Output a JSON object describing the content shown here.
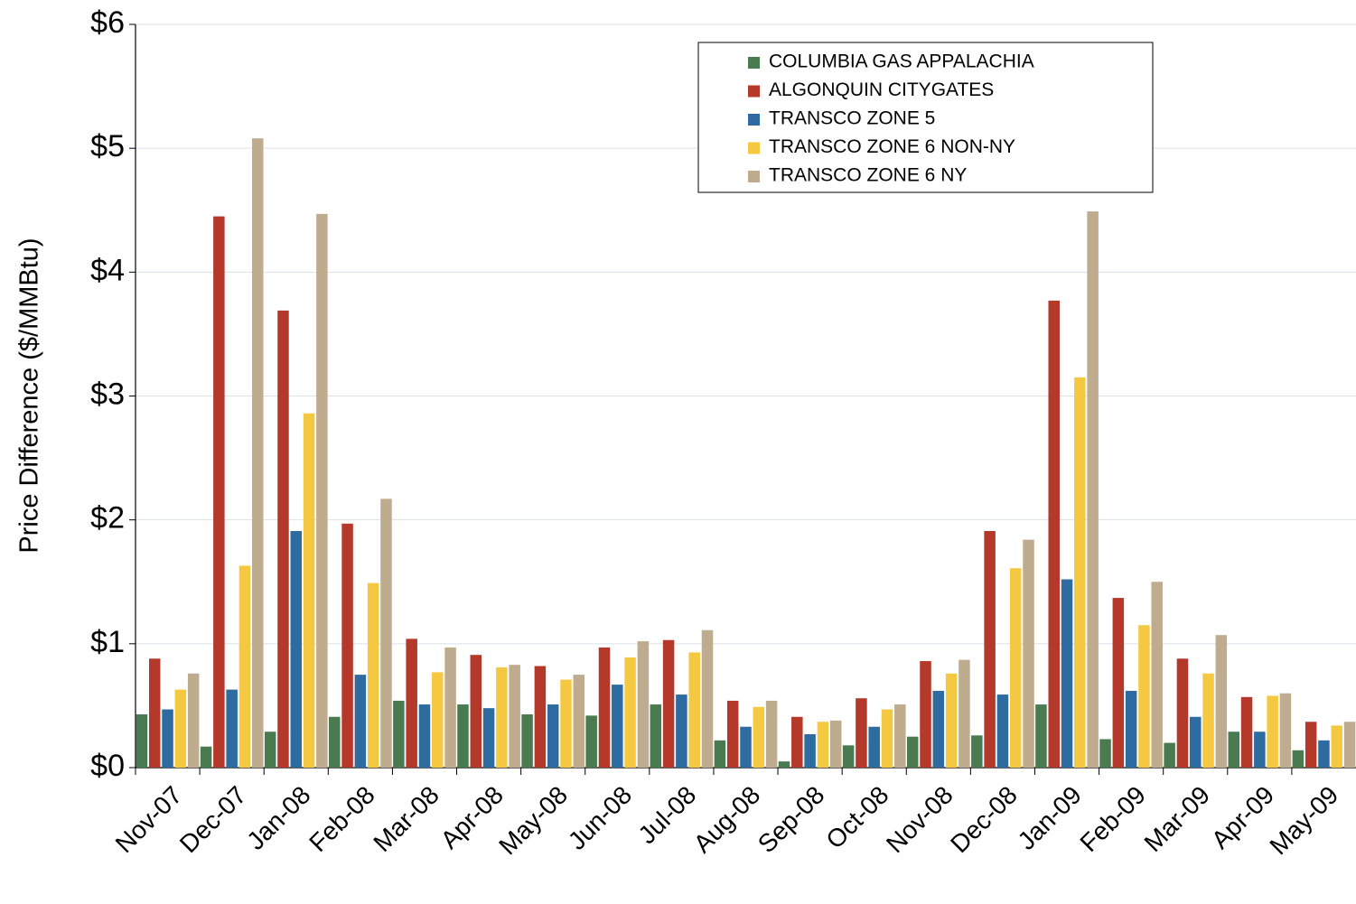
{
  "chart_data": {
    "type": "bar",
    "y_label": "Price Difference  ($/MMBtu)",
    "categories": [
      "Nov-07",
      "Dec-07",
      "Jan-08",
      "Feb-08",
      "Mar-08",
      "Apr-08",
      "May-08",
      "Jun-08",
      "Jul-08",
      "Aug-08",
      "Sep-08",
      "Oct-08",
      "Nov-08",
      "Dec-08",
      "Jan-09",
      "Feb-09",
      "Mar-09",
      "Apr-09",
      "May-09"
    ],
    "series": [
      {
        "name": "COLUMBIA GAS APPALACHIA",
        "color": "#4a7a50",
        "values": [
          0.43,
          0.17,
          0.29,
          0.41,
          0.54,
          0.51,
          0.43,
          0.42,
          0.51,
          0.22,
          0.05,
          0.18,
          0.25,
          0.26,
          0.51,
          0.23,
          0.2,
          0.29,
          0.14
        ]
      },
      {
        "name": "ALGONQUIN CITYGATES",
        "color": "#b5392a",
        "values": [
          0.88,
          4.45,
          3.69,
          1.97,
          1.04,
          0.91,
          0.82,
          0.97,
          1.03,
          0.54,
          0.41,
          0.56,
          0.86,
          1.91,
          3.77,
          1.37,
          0.88,
          0.57,
          0.37
        ]
      },
      {
        "name": "TRANSCO ZONE 5",
        "color": "#2e6ba0",
        "values": [
          0.47,
          0.63,
          1.91,
          0.75,
          0.51,
          0.48,
          0.51,
          0.67,
          0.59,
          0.33,
          0.27,
          0.33,
          0.62,
          0.59,
          1.52,
          0.62,
          0.41,
          0.29,
          0.22
        ]
      },
      {
        "name": "TRANSCO ZONE 6 NON-NY",
        "color": "#f5c842",
        "values": [
          0.63,
          1.63,
          2.86,
          1.49,
          0.77,
          0.81,
          0.71,
          0.89,
          0.93,
          0.49,
          0.37,
          0.47,
          0.76,
          1.61,
          3.15,
          1.15,
          0.76,
          0.58,
          0.34
        ]
      },
      {
        "name": "TRANSCO ZONE 6 NY",
        "color": "#bfab8e",
        "values": [
          0.76,
          5.08,
          4.47,
          2.17,
          0.97,
          0.83,
          0.75,
          1.02,
          1.11,
          0.54,
          0.38,
          0.51,
          0.87,
          1.84,
          4.49,
          1.5,
          1.07,
          0.6,
          0.37
        ]
      }
    ],
    "ylim": [
      0,
      6
    ],
    "yticks": [
      {
        "value": 0,
        "label": "$0"
      },
      {
        "value": 1,
        "label": "$1"
      },
      {
        "value": 2,
        "label": "$2"
      },
      {
        "value": 3,
        "label": "$3"
      },
      {
        "value": 4,
        "label": "$4"
      },
      {
        "value": 5,
        "label": "$5"
      },
      {
        "value": 6,
        "label": "$6"
      }
    ],
    "grid": true
  }
}
